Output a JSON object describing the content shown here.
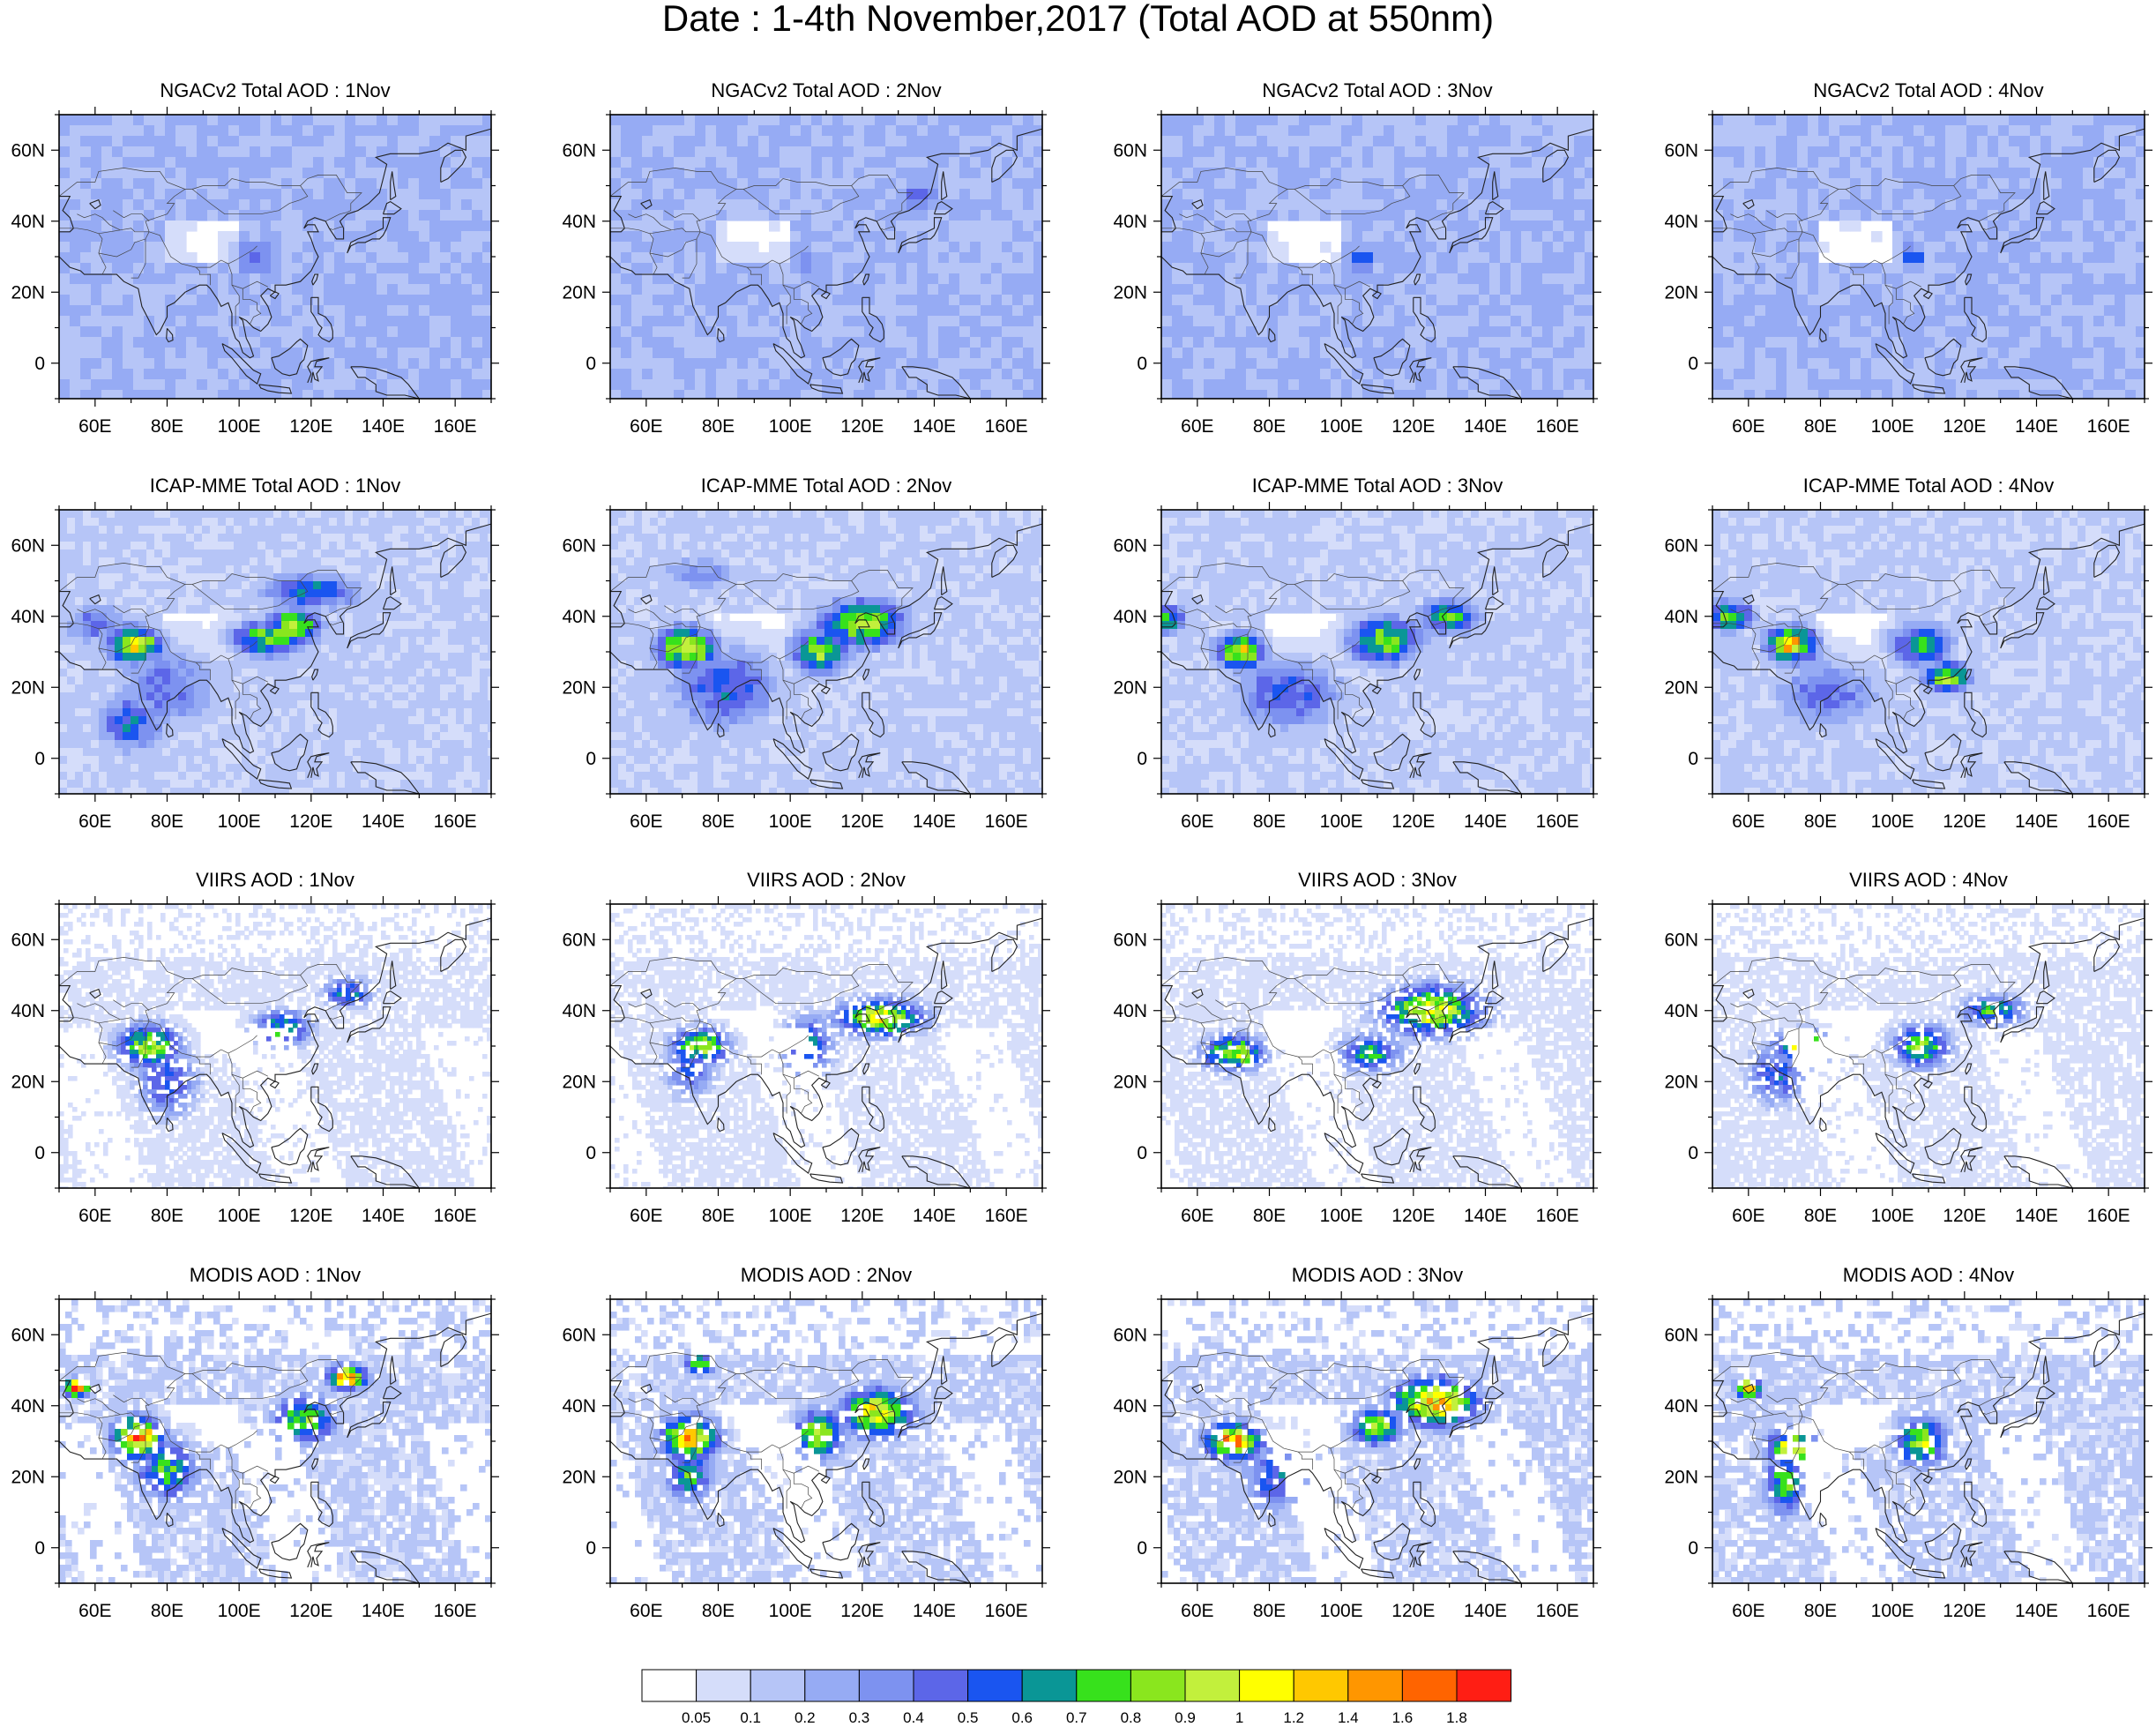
{
  "figure": {
    "title": "Date : 1-4th November,2017 (Total AOD at 550nm)"
  },
  "map": {
    "lon_range": [
      50,
      170
    ],
    "lat_range": [
      -10,
      70
    ],
    "lon_ticks": [
      60,
      80,
      100,
      120,
      140,
      160
    ],
    "lon_labels": [
      "60E",
      "80E",
      "100E",
      "120E",
      "140E",
      "160E"
    ],
    "lat_ticks": [
      60,
      40,
      20,
      0
    ],
    "lat_labels": [
      "60N",
      "40N",
      "20N",
      "0"
    ]
  },
  "rows": [
    {
      "source": "NGACv2",
      "panels": [
        {
          "title": "NGACv2 Total AOD : 1Nov"
        },
        {
          "title": "NGACv2 Total AOD : 2Nov"
        },
        {
          "title": "NGACv2 Total AOD : 3Nov"
        },
        {
          "title": "NGACv2 Total AOD : 4Nov"
        }
      ]
    },
    {
      "source": "ICAP-MME",
      "panels": [
        {
          "title": "ICAP-MME Total AOD : 1Nov"
        },
        {
          "title": "ICAP-MME Total AOD : 2Nov"
        },
        {
          "title": "ICAP-MME Total AOD : 3Nov"
        },
        {
          "title": "ICAP-MME Total AOD : 4Nov"
        }
      ]
    },
    {
      "source": "VIIRS",
      "panels": [
        {
          "title": "VIIRS AOD : 1Nov"
        },
        {
          "title": "VIIRS AOD : 2Nov"
        },
        {
          "title": "VIIRS AOD : 3Nov"
        },
        {
          "title": "VIIRS AOD : 4Nov"
        }
      ]
    },
    {
      "source": "MODIS",
      "panels": [
        {
          "title": "MODIS AOD : 1Nov"
        },
        {
          "title": "MODIS AOD : 2Nov"
        },
        {
          "title": "MODIS AOD : 3Nov"
        },
        {
          "title": "MODIS AOD : 4Nov"
        }
      ]
    }
  ],
  "colorbar": {
    "levels": [
      "0.05",
      "0.1",
      "0.2",
      "0.3",
      "0.4",
      "0.5",
      "0.6",
      "0.7",
      "0.8",
      "0.9",
      "1",
      "1.2",
      "1.4",
      "1.6",
      "1.8"
    ],
    "colors": [
      "#ffffff",
      "#d5ddfa",
      "#b6c5f7",
      "#96abf4",
      "#7d92f0",
      "#5c66e8",
      "#1a55f0",
      "#0a9696",
      "#37e11c",
      "#8ae61e",
      "#c2f03c",
      "#ffff00",
      "#ffc800",
      "#ff9600",
      "#ff6400",
      "#ff1e14"
    ]
  }
}
